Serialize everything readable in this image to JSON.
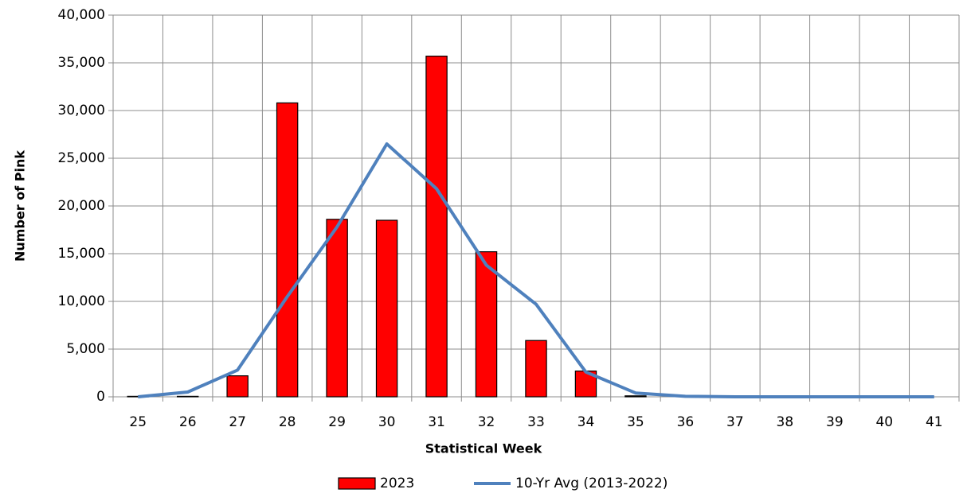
{
  "chart_data": {
    "type": "bar",
    "x_label": "Statistical Week",
    "y_label": "Number of Pink",
    "categories": [
      "25",
      "26",
      "27",
      "28",
      "29",
      "30",
      "31",
      "32",
      "33",
      "34",
      "35",
      "36",
      "37",
      "38",
      "39",
      "40",
      "41"
    ],
    "series": [
      {
        "name": "2023",
        "type": "bar",
        "color": "#ff0000",
        "values": [
          50,
          50,
          2200,
          30800,
          18600,
          18500,
          35700,
          15200,
          5900,
          2700,
          100,
          0,
          0,
          0,
          0,
          0,
          0
        ]
      },
      {
        "name": "10-Yr Avg (2013-2022)",
        "type": "line",
        "color": "#4f81bd",
        "values": [
          0,
          500,
          2800,
          10500,
          17800,
          26500,
          21800,
          13800,
          9700,
          2600,
          400,
          50,
          0,
          0,
          0,
          0,
          0
        ]
      }
    ],
    "ylim": [
      0,
      40000
    ],
    "yticks": [
      0,
      {
        "value": 5000,
        "label": "5,000"
      },
      {
        "value": 10000,
        "label": "10,000"
      },
      {
        "value": 15000,
        "label": "15,000"
      },
      {
        "value": 20000,
        "label": "20,000"
      },
      {
        "value": 25000,
        "label": "25,000"
      },
      {
        "value": 30000,
        "label": "30,000"
      },
      {
        "value": 35000,
        "label": "35,000"
      },
      {
        "value": 40000,
        "label": "40,000"
      }
    ],
    "grid": true,
    "legend": "bottom"
  }
}
